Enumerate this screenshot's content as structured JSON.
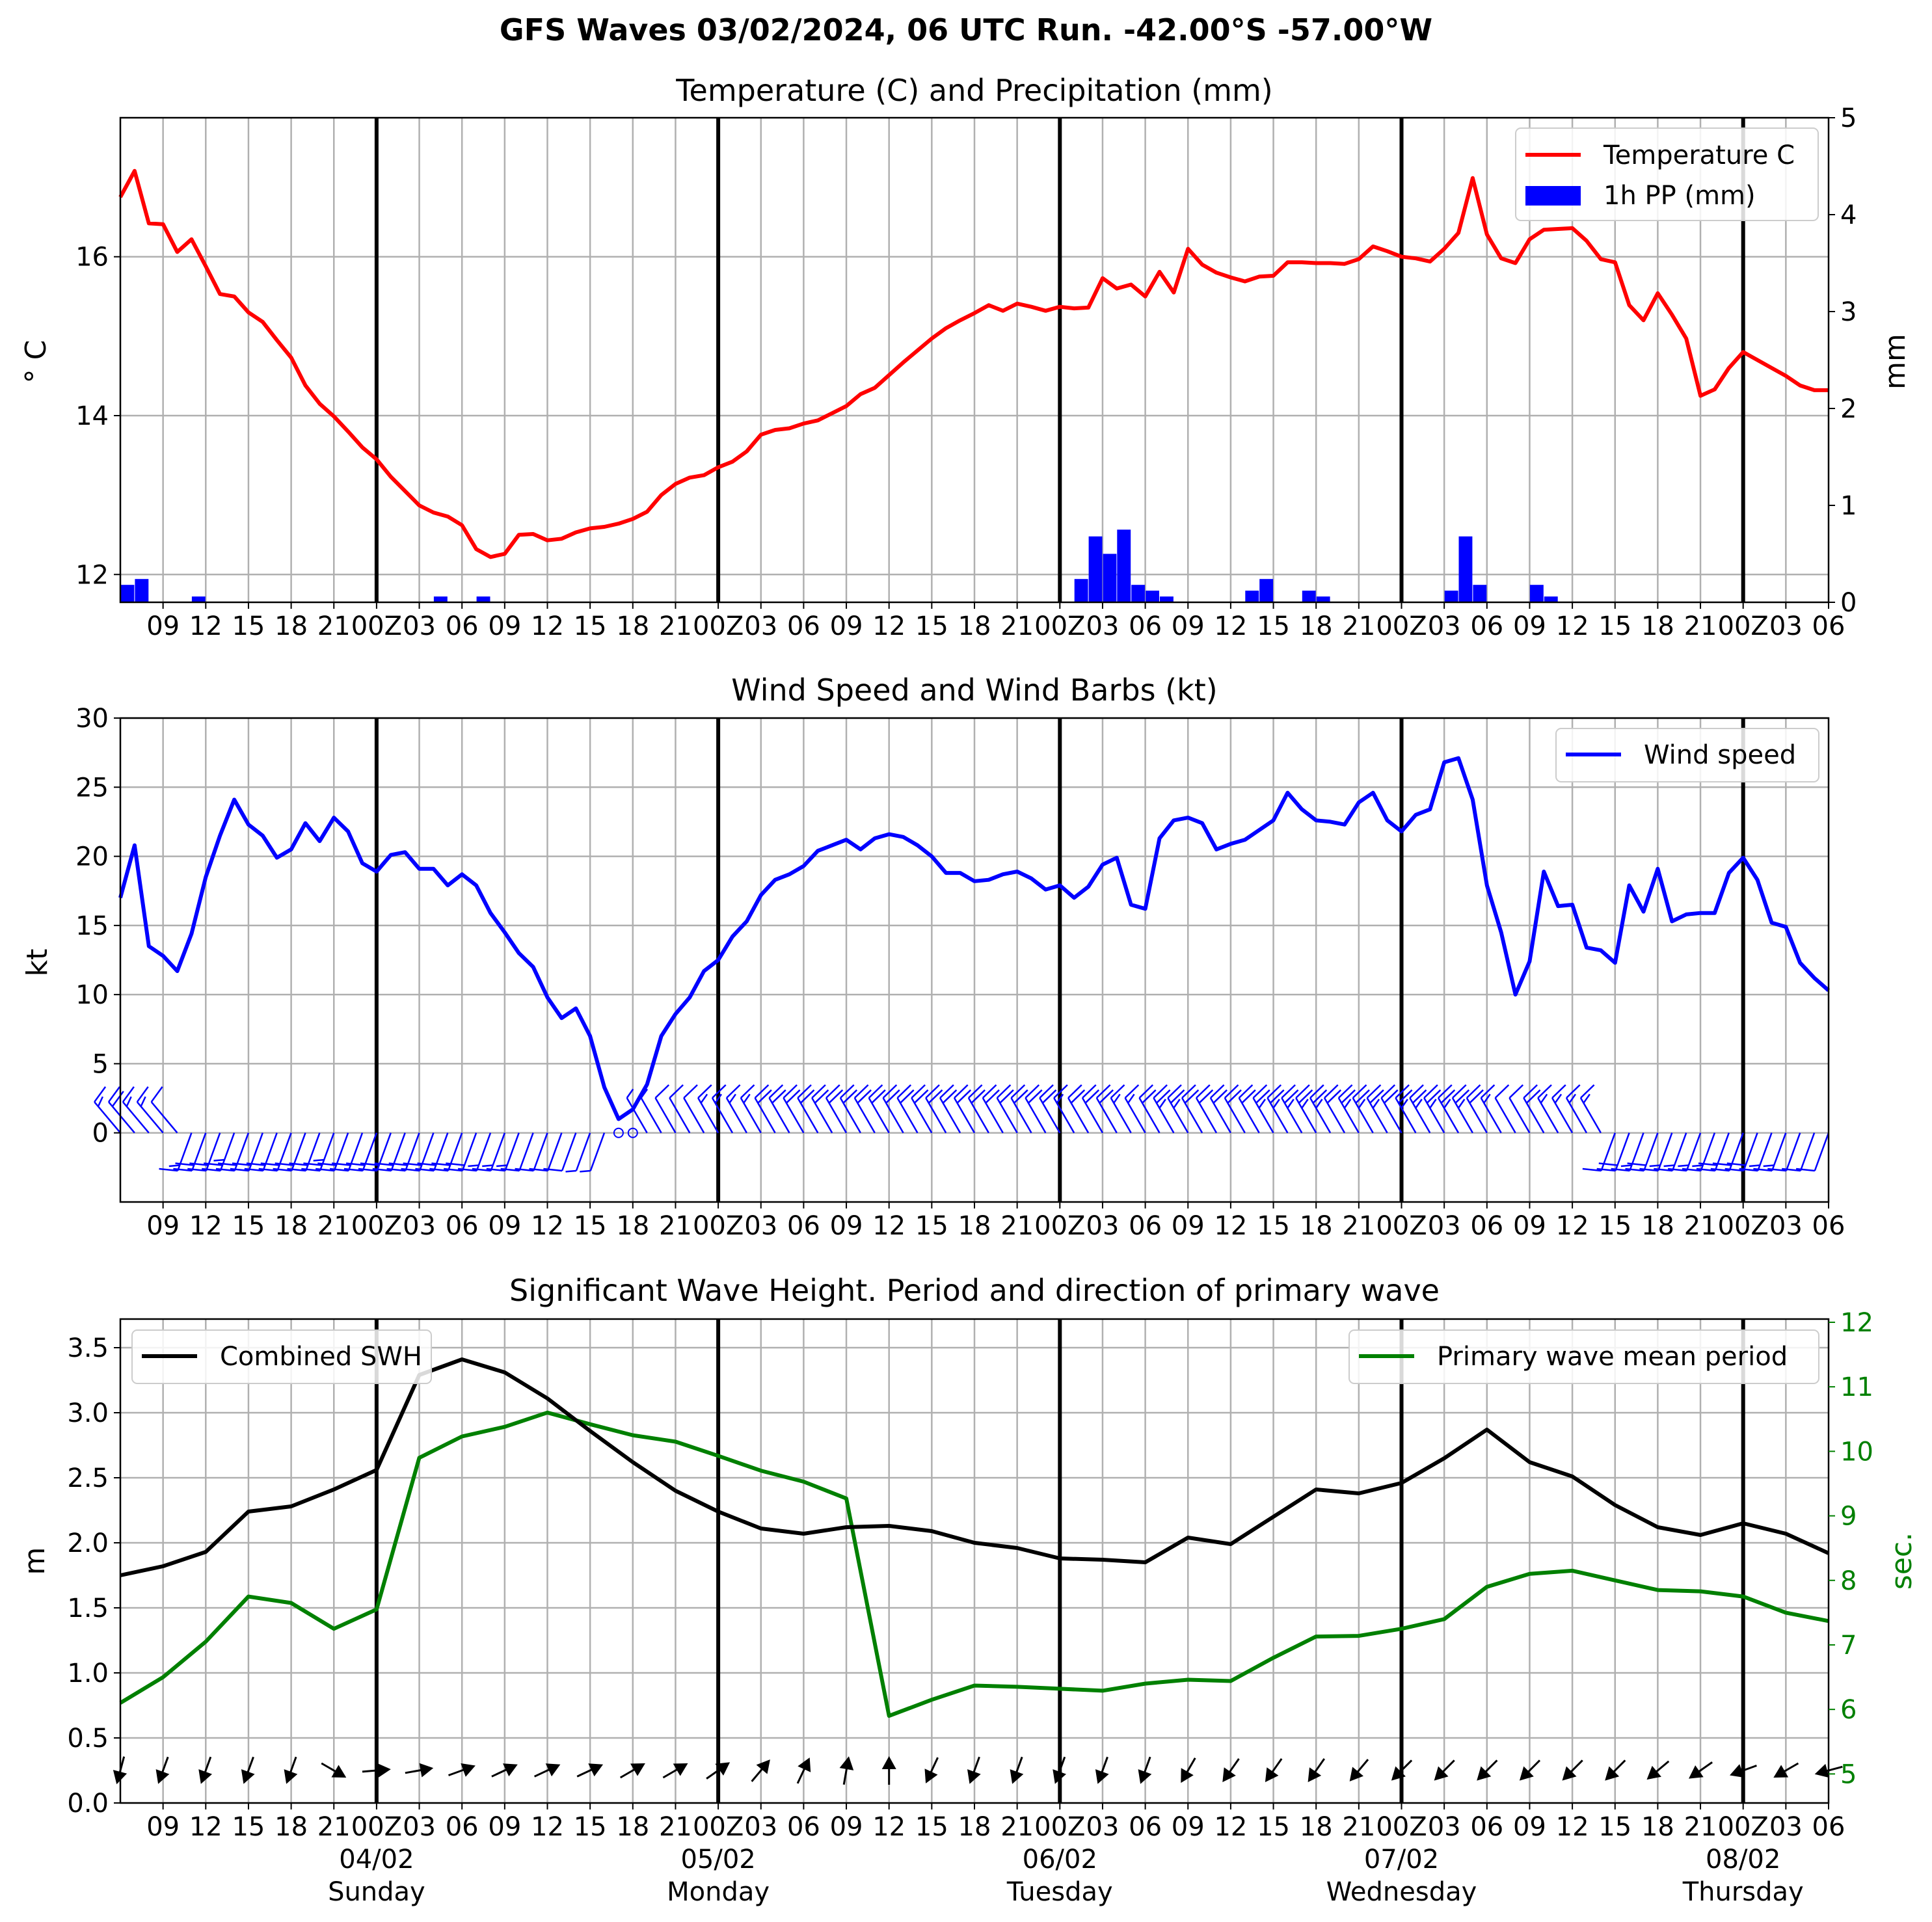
{
  "suptitle": "GFS Waves 03/02/2024, 06 UTC Run. -42.00°S -57.00°W",
  "colors": {
    "temperature": "#ff0000",
    "precip": "#0000ff",
    "wind": "#0000ff",
    "swh": "#000000",
    "period": "#008000",
    "grid": "#b0b0b0"
  },
  "time_axis": {
    "start": "03/02 06Z",
    "end": "08/02 06Z",
    "step_hours": 3,
    "tick_labels": [
      "09",
      "12",
      "15",
      "18",
      "21",
      "00Z",
      "03",
      "06",
      "09",
      "12",
      "15",
      "18",
      "21",
      "00Z",
      "03",
      "06",
      "09",
      "12",
      "15",
      "18",
      "21",
      "00Z",
      "03",
      "06",
      "09",
      "12",
      "15",
      "18",
      "21",
      "00Z",
      "03",
      "06",
      "09",
      "12",
      "15",
      "18",
      "21",
      "00Z",
      "03",
      "06"
    ],
    "day_labels": [
      {
        "date": "04/02",
        "weekday": "Sunday"
      },
      {
        "date": "05/02",
        "weekday": "Monday"
      },
      {
        "date": "06/02",
        "weekday": "Tuesday"
      },
      {
        "date": "07/02",
        "weekday": "Wednesday"
      },
      {
        "date": "08/02",
        "weekday": "Thursday"
      }
    ]
  },
  "chart_data": [
    {
      "type": "line",
      "title": "Temperature (C) and Precipitation (mm)",
      "ylabel": "$^\\circ$C",
      "ylabel_display": "° C",
      "ylabel_right": "mm",
      "ylim": [
        11.65,
        17.75
      ],
      "ylim_right": [
        0,
        5
      ],
      "yticks": [
        "12",
        "14",
        "16"
      ],
      "yticks_right": [
        "0",
        "1",
        "2",
        "3",
        "4",
        "5"
      ],
      "legend": [
        "Temperature C",
        "1h PP (mm)"
      ],
      "legend_position": "upper right",
      "x_step_hours": 1,
      "series": [
        {
          "name": "Temperature C",
          "values": [
            16.75,
            17.08,
            16.42,
            16.41,
            16.06,
            16.22,
            15.88,
            15.53,
            15.5,
            15.3,
            15.18,
            14.95,
            14.73,
            14.38,
            14.15,
            13.99,
            13.8,
            13.6,
            13.45,
            13.23,
            13.05,
            12.87,
            12.78,
            12.73,
            12.62,
            12.32,
            12.22,
            12.26,
            12.5,
            12.51,
            12.43,
            12.45,
            12.53,
            12.58,
            12.6,
            12.64,
            12.7,
            12.79,
            13.0,
            13.14,
            13.22,
            13.25,
            13.35,
            13.42,
            13.55,
            13.76,
            13.82,
            13.84,
            13.9,
            13.94,
            14.03,
            14.12,
            14.27,
            14.35,
            14.51,
            14.67,
            14.82,
            14.97,
            15.1,
            15.2,
            15.29,
            15.39,
            15.32,
            15.41,
            15.37,
            15.32,
            15.37,
            15.35,
            15.36,
            15.73,
            15.6,
            15.65,
            15.5,
            15.81,
            15.55,
            16.1,
            15.9,
            15.8,
            15.74,
            15.69,
            15.75,
            15.76,
            15.93,
            15.93,
            15.92,
            15.92,
            15.91,
            15.97,
            16.13,
            16.07,
            16.0,
            15.98,
            15.94,
            16.1,
            16.3,
            16.99,
            16.28,
            15.98,
            15.92,
            16.22,
            16.34,
            16.35,
            16.36,
            16.2,
            15.97,
            15.93,
            15.39,
            15.2,
            15.54,
            15.27,
            14.97,
            14.25,
            14.33,
            14.6,
            14.8,
            14.7,
            14.6,
            14.5,
            14.38,
            14.32,
            14.32
          ]
        },
        {
          "name": "1h PP (mm)",
          "values": [
            0.18,
            0.24,
            0,
            0,
            0,
            0.06,
            0,
            0,
            0,
            0,
            0,
            0,
            0,
            0,
            0,
            0,
            0,
            0,
            0,
            0,
            0,
            0,
            0.06,
            0,
            0,
            0.06,
            0,
            0,
            0,
            0,
            0,
            0,
            0,
            0,
            0,
            0,
            0,
            0,
            0,
            0,
            0,
            0,
            0,
            0,
            0,
            0,
            0,
            0,
            0,
            0,
            0,
            0,
            0,
            0,
            0,
            0,
            0,
            0,
            0,
            0,
            0,
            0,
            0,
            0,
            0,
            0,
            0,
            0.24,
            0.68,
            0.5,
            0.75,
            0.18,
            0.12,
            0.06,
            0,
            0,
            0,
            0,
            0,
            0.12,
            0.24,
            0,
            0,
            0.12,
            0.06,
            0,
            0,
            0,
            0,
            0,
            0,
            0,
            0,
            0.12,
            0.68,
            0.18,
            0,
            0,
            0,
            0.18,
            0.06,
            0,
            0,
            0,
            0,
            0,
            0,
            0,
            0,
            0,
            0,
            0,
            0,
            0,
            0,
            0,
            0,
            0,
            0,
            0,
            0
          ]
        }
      ]
    },
    {
      "type": "line",
      "title": "Wind Speed and Wind Barbs (kt)",
      "ylabel": "kt",
      "ylim": [
        -5,
        30
      ],
      "yticks": [
        "0",
        "5",
        "10",
        "15",
        "20",
        "25",
        "30"
      ],
      "legend": [
        "Wind speed"
      ],
      "legend_position": "upper right",
      "x_step_hours": 1,
      "series": [
        {
          "name": "Wind speed",
          "values": [
            17,
            20.8,
            13.5,
            12.8,
            11.7,
            14.4,
            18.5,
            21.5,
            24.1,
            22.3,
            21.5,
            19.9,
            20.5,
            22.4,
            21.1,
            22.8,
            21.8,
            19.5,
            18.9,
            20.1,
            20.3,
            19.1,
            19.1,
            17.9,
            18.7,
            17.9,
            15.9,
            14.5,
            13.0,
            12.0,
            9.8,
            8.3,
            9.0,
            7.0,
            3.3,
            1.0,
            1.7,
            3.5,
            7.0,
            8.6,
            9.8,
            11.7,
            12.5,
            14.2,
            15.3,
            17.2,
            18.3,
            18.7,
            19.3,
            20.4,
            20.8,
            21.2,
            20.5,
            21.3,
            21.6,
            21.4,
            20.8,
            20.0,
            18.8,
            18.8,
            18.2,
            18.3,
            18.7,
            18.9,
            18.4,
            17.6,
            17.9,
            17.0,
            17.8,
            19.4,
            19.9,
            16.5,
            16.2,
            21.3,
            22.6,
            22.8,
            22.4,
            20.5,
            20.9,
            21.2,
            21.9,
            22.6,
            24.6,
            23.4,
            22.6,
            22.5,
            22.3,
            23.9,
            24.6,
            22.6,
            21.8,
            23.0,
            23.4,
            26.8,
            27.1,
            24.1,
            17.9,
            14.5,
            10.0,
            12.4,
            18.9,
            16.4,
            16.5,
            13.4,
            13.2,
            12.3,
            17.9,
            16.0,
            19.1,
            15.3,
            15.8,
            15.9,
            15.9,
            18.8,
            19.9,
            18.3,
            15.2,
            14.9,
            12.3,
            11.2,
            10.3
          ]
        }
      ],
      "wind_barbs": {
        "step_hours": 1,
        "direction_deg": [
          320,
          320,
          320,
          320,
          320,
          200,
          200,
          200,
          200,
          200,
          200,
          200,
          200,
          200,
          200,
          200,
          200,
          200,
          200,
          200,
          200,
          200,
          200,
          200,
          200,
          200,
          200,
          200,
          200,
          200,
          200,
          200,
          200,
          200,
          200,
          200,
          200,
          330,
          330,
          330,
          330,
          330,
          330,
          330,
          330,
          330,
          330,
          330,
          330,
          330,
          330,
          330,
          330,
          330,
          330,
          330,
          330,
          330,
          330,
          330,
          330,
          330,
          330,
          330,
          330,
          330,
          330,
          330,
          330,
          330,
          330,
          330,
          330,
          330,
          330,
          330,
          330,
          330,
          330,
          330,
          330,
          330,
          330,
          330,
          330,
          330,
          330,
          330,
          330,
          330,
          330,
          330,
          330,
          330,
          330,
          330,
          330,
          330,
          330,
          330,
          330,
          330,
          330,
          330,
          330,
          200,
          200,
          200,
          200,
          200,
          200,
          200,
          200,
          200,
          200,
          200,
          200,
          200,
          200,
          200,
          200
        ]
      }
    },
    {
      "type": "line",
      "title": "Significant Wave Height. Period and direction of primary wave",
      "ylabel": "m",
      "ylabel_right": "sec.",
      "ylim": [
        0,
        3.72
      ],
      "ylim_right": [
        4.55,
        12.05
      ],
      "yticks": [
        "0.0",
        "0.5",
        "1.0",
        "1.5",
        "2.0",
        "2.5",
        "3.0",
        "3.5"
      ],
      "yticks_right": [
        "5",
        "6",
        "7",
        "8",
        "9",
        "10",
        "11",
        "12"
      ],
      "legend": [
        "Combined SWH",
        "Primary wave mean period"
      ],
      "legend_position": [
        "upper left",
        "upper right"
      ],
      "x_step_hours": 3,
      "series": [
        {
          "name": "Combined SWH",
          "values": [
            1.75,
            1.82,
            1.93,
            2.24,
            2.28,
            2.41,
            2.56,
            3.29,
            3.41,
            3.31,
            3.11,
            2.86,
            2.62,
            2.4,
            2.24,
            2.11,
            2.07,
            2.12,
            2.13,
            2.09,
            2.0,
            1.96,
            1.88,
            1.87,
            1.85,
            2.04,
            1.99,
            2.2,
            2.41,
            2.38,
            2.46,
            2.65,
            2.87,
            2.62,
            2.51,
            2.29,
            2.12,
            2.06,
            2.15,
            2.07,
            1.92
          ]
        },
        {
          "name": "Primary wave mean period",
          "values": [
            6.1,
            6.5,
            7.05,
            7.75,
            7.65,
            7.25,
            7.55,
            9.9,
            10.23,
            10.38,
            10.6,
            10.42,
            10.25,
            10.15,
            9.93,
            9.7,
            9.53,
            9.27,
            5.9,
            6.15,
            6.37,
            6.35,
            6.32,
            6.29,
            6.4,
            6.46,
            6.44,
            6.8,
            7.13,
            7.14,
            7.25,
            7.4,
            7.9,
            8.1,
            8.15,
            8.0,
            7.85,
            7.83,
            7.75,
            7.5,
            7.37
          ]
        }
      ],
      "wave_direction_deg": [
        15,
        20,
        20,
        20,
        20,
        300,
        265,
        260,
        250,
        245,
        245,
        245,
        240,
        240,
        235,
        220,
        205,
        190,
        180,
        25,
        20,
        20,
        20,
        20,
        20,
        30,
        35,
        35,
        35,
        40,
        45,
        45,
        45,
        45,
        45,
        45,
        50,
        55,
        70,
        60,
        75
      ]
    }
  ]
}
